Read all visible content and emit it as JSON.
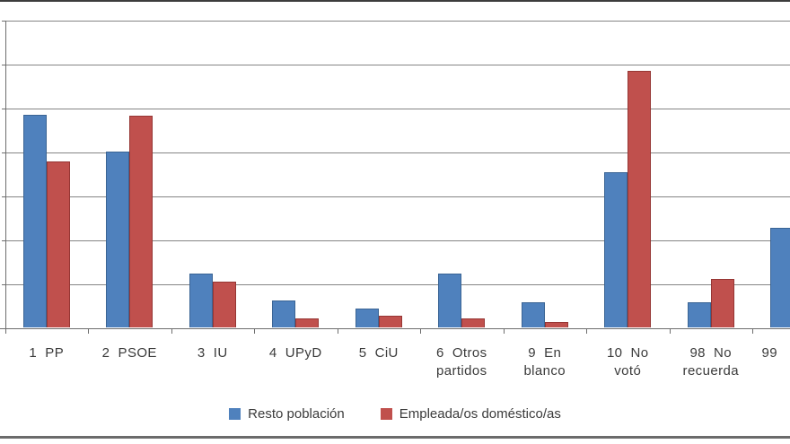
{
  "chart_data": {
    "type": "bar",
    "title": "",
    "xlabel": "",
    "ylabel": "",
    "grid": true,
    "legend_position": "bottom",
    "ylim": [
      0,
      35
    ],
    "gridline_interval": 5,
    "categories": [
      "1  PP",
      "2  PSOE",
      "3  IU",
      "4  UPyD",
      "5  CiU",
      "6  Otros\npartidos",
      "9  En\nblanco",
      "10  No\nvotó",
      "98  No\nrecuerda",
      "99"
    ],
    "series": [
      {
        "name": "Resto población",
        "color": "#4F81BD",
        "border_color": "#3A6494",
        "values": [
          24.2,
          20.1,
          6.2,
          3.1,
          2.2,
          6.2,
          2.9,
          17.7,
          2.9,
          11.4
        ]
      },
      {
        "name": "Empleada/os doméstico/as",
        "color": "#C0504D",
        "border_color": "#963634",
        "values": [
          18.9,
          24.1,
          5.3,
          1.1,
          1.4,
          1.1,
          0.7,
          29.2,
          5.6,
          null
        ]
      }
    ]
  }
}
